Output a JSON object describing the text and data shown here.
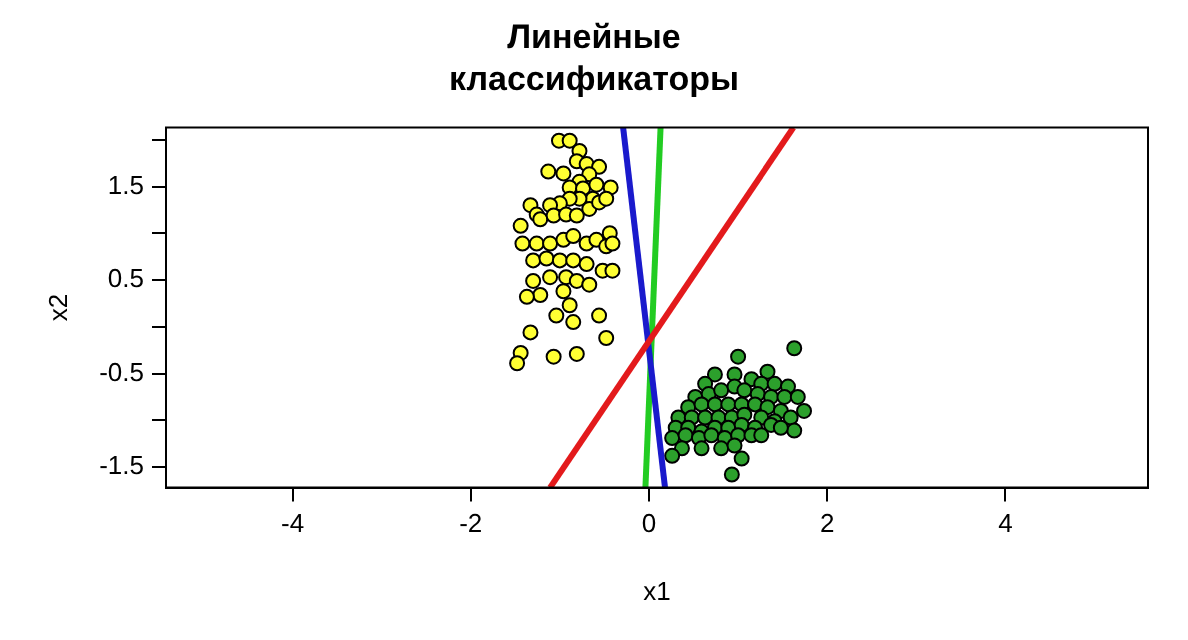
{
  "chart_data": {
    "type": "scatter",
    "title": "Линейные классификаторы",
    "xlabel": "x1",
    "ylabel": "x2",
    "xlim": [
      -5.42,
      5.6
    ],
    "ylim": [
      -1.72,
      2.13
    ],
    "xticks": [
      -4,
      -2,
      0,
      2,
      4
    ],
    "yticks": [
      {
        "value": -1.5,
        "label": "-1.5"
      },
      {
        "value": -1,
        "label": null
      },
      {
        "value": -0.5,
        "label": "-0.5"
      },
      {
        "value": 0,
        "label": null
      },
      {
        "value": 0.5,
        "label": "0.5"
      },
      {
        "value": 1,
        "label": null
      },
      {
        "value": 1.5,
        "label": "1.5"
      },
      {
        "value": 2,
        "label": null
      }
    ],
    "grid": false,
    "legend": false,
    "series": [
      {
        "color": "#ffff33",
        "marker": "circle",
        "x": [
          -1.01,
          -0.89,
          -0.78,
          -1.13,
          -0.96,
          -0.81,
          -0.7,
          -0.56,
          -0.67,
          -0.78,
          -0.89,
          -0.74,
          -0.59,
          -0.43,
          -0.63,
          -0.78,
          -0.89,
          -1.0,
          -1.11,
          -1.33,
          -1.26,
          -1.44,
          -1.22,
          -1.07,
          -0.93,
          -0.81,
          -0.67,
          -0.56,
          -0.48,
          -1.42,
          -1.26,
          -1.11,
          -0.96,
          -0.85,
          -0.7,
          -0.59,
          -0.44,
          -0.48,
          -0.41,
          -1.3,
          -1.15,
          -1.0,
          -0.85,
          -0.7,
          -0.93,
          -1.3,
          -1.11,
          -0.81,
          -0.96,
          -1.22,
          -1.37,
          -0.67,
          -0.89,
          -1.04,
          -0.85,
          -0.56,
          -1.33,
          -0.48,
          -1.44,
          -1.48,
          -1.07,
          -0.81,
          -0.52,
          -0.41
        ],
        "values": [
          1.99,
          1.99,
          1.88,
          1.66,
          1.64,
          1.77,
          1.74,
          1.71,
          1.63,
          1.55,
          1.49,
          1.48,
          1.52,
          1.49,
          1.37,
          1.37,
          1.37,
          1.32,
          1.3,
          1.3,
          1.2,
          1.08,
          1.15,
          1.19,
          1.2,
          1.19,
          1.26,
          1.33,
          1.37,
          0.89,
          0.89,
          0.89,
          0.93,
          0.97,
          0.89,
          0.93,
          1.0,
          0.86,
          0.89,
          0.71,
          0.73,
          0.71,
          0.71,
          0.67,
          0.53,
          0.49,
          0.53,
          0.49,
          0.38,
          0.34,
          0.32,
          0.45,
          0.23,
          0.12,
          0.05,
          0.12,
          -0.06,
          -0.12,
          -0.28,
          -0.39,
          -0.32,
          -0.29,
          0.6,
          0.6
        ]
      },
      {
        "color": "#2ca02c",
        "marker": "circle",
        "x": [
          1.63,
          1.0,
          0.96,
          1.33,
          0.74,
          0.63,
          1.15,
          1.26,
          1.41,
          1.56,
          0.52,
          0.67,
          0.81,
          0.96,
          1.07,
          1.22,
          1.37,
          1.52,
          1.67,
          0.44,
          0.59,
          0.74,
          0.89,
          1.04,
          1.19,
          1.33,
          1.48,
          1.74,
          0.33,
          0.48,
          0.63,
          0.78,
          0.93,
          1.07,
          1.26,
          1.41,
          1.59,
          0.3,
          0.44,
          0.59,
          0.74,
          0.89,
          1.04,
          1.19,
          1.37,
          1.63,
          0.26,
          0.41,
          0.56,
          0.7,
          0.85,
          1.0,
          1.15,
          1.26,
          0.37,
          0.59,
          0.81,
          0.96,
          0.26,
          1.04,
          0.93,
          1.48
        ],
        "values": [
          -0.23,
          -0.32,
          -0.51,
          -0.48,
          -0.51,
          -0.61,
          -0.56,
          -0.61,
          -0.61,
          -0.64,
          -0.75,
          -0.72,
          -0.68,
          -0.64,
          -0.68,
          -0.72,
          -0.75,
          -0.75,
          -0.75,
          -0.86,
          -0.83,
          -0.83,
          -0.83,
          -0.83,
          -0.83,
          -0.86,
          -0.9,
          -0.9,
          -0.97,
          -0.97,
          -0.97,
          -0.97,
          -0.97,
          -0.94,
          -0.97,
          -1.01,
          -0.97,
          -1.08,
          -1.08,
          -1.12,
          -1.08,
          -1.08,
          -1.05,
          -1.08,
          -1.05,
          -1.11,
          -1.19,
          -1.16,
          -1.19,
          -1.16,
          -1.19,
          -1.16,
          -1.16,
          -1.16,
          -1.3,
          -1.3,
          -1.3,
          -1.27,
          -1.38,
          -1.41,
          -1.58,
          -1.08
        ]
      },
      {
        "type": "line",
        "marker": "none",
        "color": "#e31a1c",
        "x": [
          -1.11,
          1.62
        ],
        "values": [
          -1.72,
          2.13
        ]
      },
      {
        "type": "line",
        "marker": "none",
        "color": "#1a1acc",
        "x": [
          -0.29,
          0.18
        ],
        "values": [
          2.13,
          -1.72
        ]
      },
      {
        "type": "line",
        "marker": "none",
        "color": "#22cc22",
        "x": [
          0.13,
          -0.04
        ],
        "values": [
          2.13,
          -1.72
        ]
      }
    ]
  }
}
